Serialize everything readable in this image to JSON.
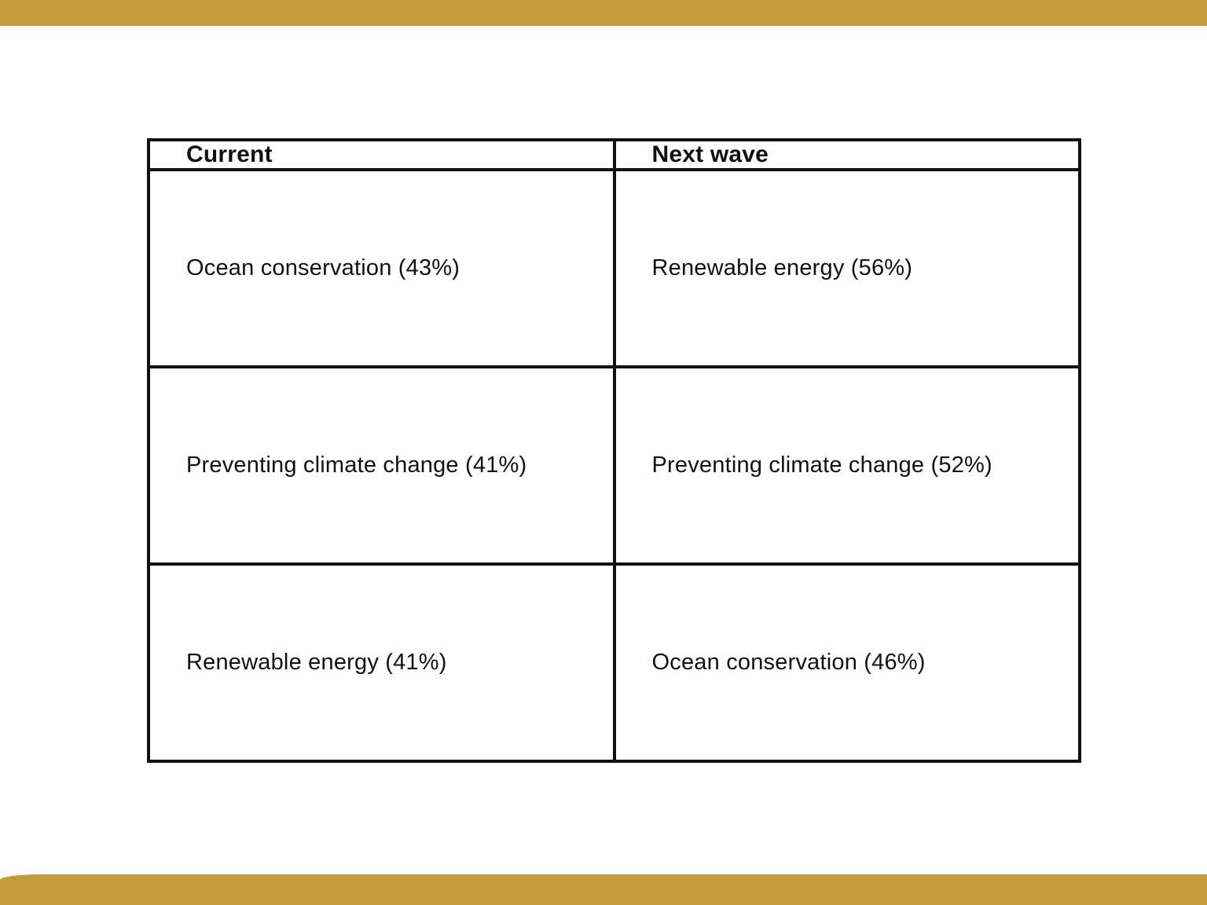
{
  "slide": {
    "background_color": "#FFFFFF",
    "accent_bar_color": "#C29B3D",
    "table_border_color": "#111111",
    "text_color": "#111111"
  },
  "table": {
    "headers": [
      "Current",
      "Next wave"
    ],
    "rows": [
      {
        "cells": [
          "Ocean conservation (43%)",
          "Renewable energy (56%)"
        ]
      },
      {
        "cells": [
          "Preventing climate change (41%)",
          "Preventing climate change (52%)"
        ]
      },
      {
        "cells": [
          "Renewable energy (41%)",
          "Ocean conservation (46%)"
        ]
      }
    ]
  },
  "chart_data": {
    "type": "table",
    "columns": [
      "Current",
      "Next wave"
    ],
    "rows": [
      [
        "Ocean conservation (43%)",
        "Renewable energy (56%)"
      ],
      [
        "Preventing climate change (41%)",
        "Preventing climate change (52%)"
      ],
      [
        "Renewable energy (41%)",
        "Ocean conservation (46%)"
      ]
    ],
    "parsed_values": {
      "categories": [
        "Ocean conservation",
        "Preventing climate change",
        "Renewable energy"
      ],
      "series": [
        {
          "name": "Current",
          "values": [
            43,
            41,
            41
          ]
        },
        {
          "name": "Next wave",
          "values": [
            46,
            52,
            56
          ]
        }
      ],
      "unit": "percent",
      "note_layout": "Each column lists causes ranked by share within that wave"
    }
  }
}
